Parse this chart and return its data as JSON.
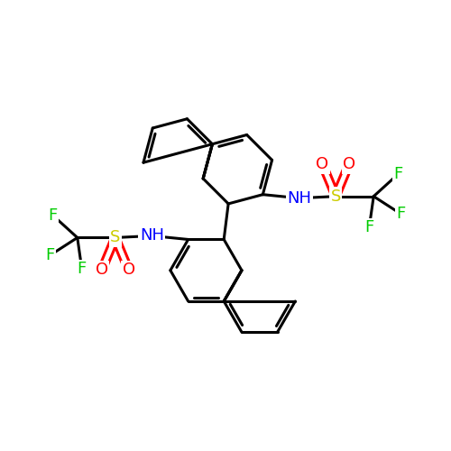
{
  "bg_color": "#ffffff",
  "bond_color": "#000000",
  "bond_width": 2.2,
  "atom_colors": {
    "N": "#0000ff",
    "O": "#ff0000",
    "S": "#cccc00",
    "F": "#00cc00"
  },
  "label_font_size": 13
}
